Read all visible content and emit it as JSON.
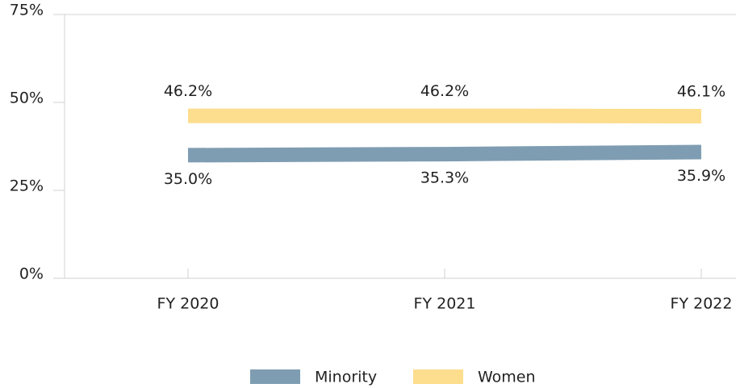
{
  "chart_data": {
    "type": "line",
    "categories": [
      "FY 2020",
      "FY 2021",
      "FY 2022"
    ],
    "series": [
      {
        "name": "Minority",
        "color": "#7f9db2",
        "values": [
          35.0,
          35.3,
          35.9
        ],
        "value_labels": [
          "35.0%",
          "35.3%",
          "35.9%"
        ]
      },
      {
        "name": "Women",
        "color": "#fddd8e",
        "values": [
          46.2,
          46.2,
          46.1
        ],
        "value_labels": [
          "46.2%",
          "46.2%",
          "46.1%"
        ]
      }
    ],
    "ylim": [
      0,
      75
    ],
    "yticks": [
      {
        "value": 0,
        "label": "0%"
      },
      {
        "value": 25,
        "label": "25%"
      },
      {
        "value": 50,
        "label": "50%"
      },
      {
        "value": 75,
        "label": "75%"
      }
    ],
    "legend": "bottom"
  }
}
